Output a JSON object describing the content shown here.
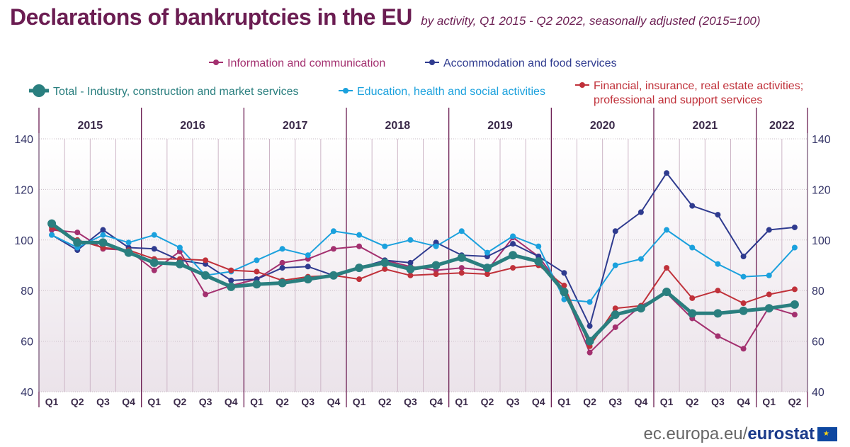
{
  "header": {
    "title": "Declarations of bankruptcies in the EU",
    "subtitle": "by activity, Q1 2015 - Q2 2022, seasonally adjusted (2015=100)"
  },
  "footer": {
    "host": "ec.europa.eu/",
    "brand": "eurostat",
    "flag_icon": "eu-flag-icon"
  },
  "colors": {
    "background": "#ebe3ea",
    "year_divider": "#6b1d52",
    "quarter_grid": "#cdb6c7",
    "axis_text": "#333366"
  },
  "chart_data": {
    "type": "line",
    "years": [
      "2015",
      "2016",
      "2017",
      "2018",
      "2019",
      "2020",
      "2021",
      "2022"
    ],
    "x": [
      "Q1",
      "Q2",
      "Q3",
      "Q4",
      "Q1",
      "Q2",
      "Q3",
      "Q4",
      "Q1",
      "Q2",
      "Q3",
      "Q4",
      "Q1",
      "Q2",
      "Q3",
      "Q4",
      "Q1",
      "Q2",
      "Q3",
      "Q4",
      "Q1",
      "Q2",
      "Q3",
      "Q4",
      "Q1",
      "Q2",
      "Q3",
      "Q4",
      "Q1",
      "Q2"
    ],
    "ylim": [
      40,
      140
    ],
    "yticks": [
      "40",
      "60",
      "80",
      "100",
      "120",
      "140"
    ],
    "grid": true,
    "legend_position": "top",
    "series": [
      {
        "name": "Information and communication",
        "color": "#a3306f",
        "width": 2,
        "marker": 4,
        "values": [
          104,
          103,
          96.5,
          96,
          88,
          95.5,
          78.5,
          82,
          84.5,
          91,
          92.5,
          96.5,
          97.5,
          92,
          89.5,
          88,
          89,
          88,
          101,
          93.5,
          80,
          55.5,
          65.5,
          74,
          79,
          69,
          62,
          57,
          73.5,
          70.5
        ]
      },
      {
        "name": "Accommodation and food services",
        "color": "#2f3b8f",
        "width": 2,
        "marker": 4,
        "values": [
          102,
          96,
          104,
          97,
          96.5,
          92,
          90.5,
          84,
          84.5,
          89,
          89.5,
          86,
          89,
          92,
          91,
          99,
          94,
          93.5,
          98.5,
          93.5,
          87,
          66,
          103.5,
          111,
          126.5,
          113.5,
          110,
          93.5,
          104,
          105
        ]
      },
      {
        "name": "Education, health and social activities",
        "color": "#1ba1dd",
        "width": 2,
        "marker": 4,
        "values": [
          102,
          97,
          102,
          99,
          102,
          97,
          86,
          87.5,
          92,
          96.5,
          94,
          103.5,
          102,
          97.5,
          100,
          97.5,
          103.5,
          95,
          101.5,
          97.5,
          76.5,
          75.5,
          90,
          92.5,
          104,
          97,
          90.5,
          85.5,
          86,
          97
        ]
      },
      {
        "name": "Financial, insurance, real estate activities; professional and support services",
        "color": "#c0313a",
        "width": 2,
        "marker": 4,
        "values": [
          105,
          100,
          97,
          96,
          92.5,
          92.5,
          92,
          88,
          87.5,
          84,
          85.5,
          86,
          84.5,
          88.5,
          86,
          86.5,
          87,
          86.5,
          89,
          90,
          82,
          58,
          73,
          74,
          89,
          77,
          80,
          75,
          78.5,
          80.5
        ]
      },
      {
        "name": "Total - Industry, construction and market services",
        "color": "#2a7f7f",
        "width": 5,
        "marker": 6,
        "values": [
          106.5,
          99,
          99,
          95,
          91,
          90.5,
          86,
          81.5,
          82.5,
          83,
          84.5,
          86,
          89,
          91,
          88.5,
          90,
          93,
          89,
          94,
          91.5,
          79.5,
          60,
          70.5,
          73,
          79.5,
          71,
          71,
          72,
          73,
          74.5
        ]
      }
    ]
  }
}
